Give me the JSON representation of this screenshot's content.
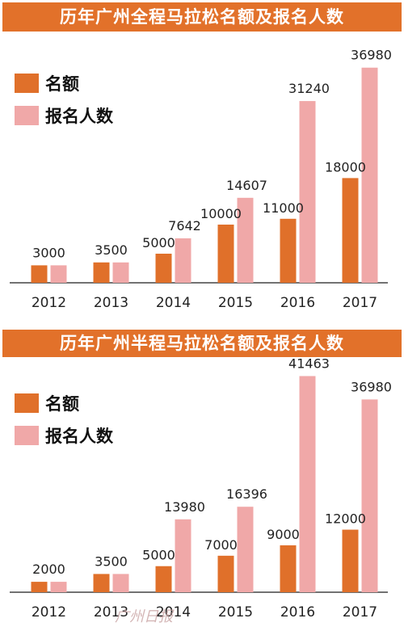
{
  "colors": {
    "banner": "#e2712a",
    "quota": "#e0702a",
    "registrants": "#f0a8a8",
    "axis": "#444444",
    "text": "#222222"
  },
  "charts": [
    {
      "title": "历年广州全程马拉松名额及报名人数",
      "legend": {
        "quota": "名额",
        "registrants": "报名人数"
      }
    },
    {
      "title": "历年广州半程马拉松名额及报名人数",
      "legend": {
        "quota": "名额",
        "registrants": "报名人数"
      }
    }
  ],
  "watermark": "广州日报",
  "chart_data": [
    {
      "type": "bar",
      "title": "历年广州全程马拉松名额及报名人数",
      "categories": [
        "2012",
        "2013",
        "2014",
        "2015",
        "2016",
        "2017"
      ],
      "series": [
        {
          "name": "名额",
          "values": [
            3000,
            3500,
            5000,
            10000,
            11000,
            18000
          ]
        },
        {
          "name": "报名人数",
          "values": [
            3000,
            3500,
            7642,
            14607,
            31240,
            36980
          ]
        }
      ],
      "data_labels": [
        "3000",
        "3500",
        "5000",
        "7642",
        "10000",
        "14607",
        "11000",
        "31240",
        "18000",
        "36980"
      ],
      "ylim": [
        0,
        40000
      ],
      "legend": "top-left",
      "grid": false
    },
    {
      "type": "bar",
      "title": "历年广州半程马拉松名额及报名人数",
      "categories": [
        "2012",
        "2013",
        "2014",
        "2015",
        "2016",
        "2017"
      ],
      "series": [
        {
          "name": "名额",
          "values": [
            2000,
            3500,
            5000,
            7000,
            9000,
            12000
          ]
        },
        {
          "name": "报名人数",
          "values": [
            2000,
            3500,
            13980,
            16396,
            41463,
            36980
          ]
        }
      ],
      "data_labels": [
        "2000",
        "3500",
        "5000",
        "13980",
        "7000",
        "16396",
        "9000",
        "41463",
        "12000",
        "36980"
      ],
      "ylim": [
        0,
        42000
      ],
      "legend": "top-left",
      "grid": false
    }
  ]
}
